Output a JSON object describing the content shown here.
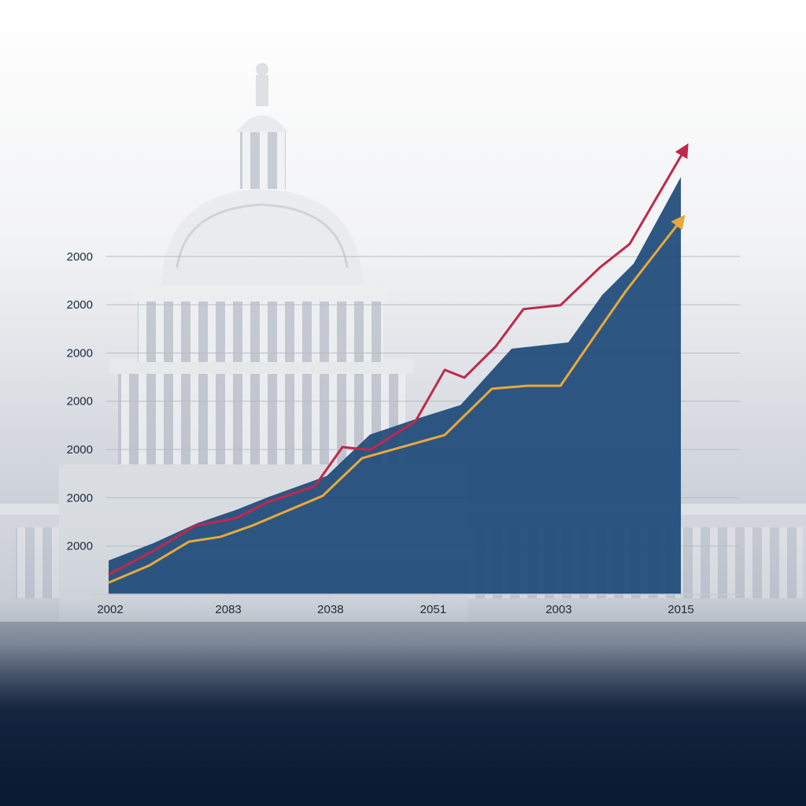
{
  "chart_data": {
    "type": "line",
    "xlim": [
      -2.76,
      110.34
    ],
    "xticks": [
      {
        "value": 0,
        "label": "2002"
      },
      {
        "value": 20.7,
        "label": "2083"
      },
      {
        "value": 38.6,
        "label": "2038"
      },
      {
        "value": 56.6,
        "label": "2051"
      },
      {
        "value": 78.6,
        "label": "2003"
      },
      {
        "value": 100,
        "label": "2015"
      }
    ],
    "ylim": [
      0,
      9.5
    ],
    "yticks": [
      {
        "value": 1,
        "label": "2000"
      },
      {
        "value": 2,
        "label": "2000"
      },
      {
        "value": 3,
        "label": "2000"
      },
      {
        "value": 4,
        "label": "2000"
      },
      {
        "value": 5,
        "label": "2000"
      },
      {
        "value": 6,
        "label": "2000"
      },
      {
        "value": 7,
        "label": "2000"
      }
    ],
    "grid": true,
    "series": [
      {
        "kind": "area",
        "color": "#1f4a7a",
        "x": [
          -0.28,
          7.59,
          15.17,
          22.07,
          27.59,
          37.93,
          45.52,
          53.79,
          61.38,
          70.34,
          80.28,
          86.21,
          91.72,
          100
        ],
        "values": [
          0.7,
          1.06,
          1.47,
          1.75,
          2.01,
          2.45,
          3.31,
          3.64,
          3.92,
          5.09,
          5.22,
          6.2,
          6.85,
          8.65
        ]
      },
      {
        "kind": "line",
        "color": "#c0284a",
        "x": [
          -0.28,
          7.59,
          14.9,
          22.07,
          27.59,
          35.86,
          40.69,
          45.52,
          53.52,
          58.62,
          62.07,
          67.59,
          72.41,
          78.9,
          85.79,
          91.03,
          100.69
        ],
        "values": [
          0.41,
          0.9,
          1.42,
          1.58,
          1.91,
          2.24,
          3.05,
          2.99,
          3.59,
          4.65,
          4.49,
          5.14,
          5.91,
          5.99,
          6.77,
          7.26,
          9.22
        ]
      },
      {
        "kind": "line",
        "color": "#e8a93a",
        "x": [
          -0.28,
          6.9,
          13.79,
          19.31,
          24.83,
          37.24,
          44.14,
          58.62,
          66.9,
          73.1,
          78.9,
          85.52,
          90.34,
          100
        ],
        "values": [
          0.24,
          0.6,
          1.09,
          1.19,
          1.42,
          2.04,
          2.82,
          3.3,
          4.26,
          4.32,
          4.32,
          5.46,
          6.28,
          7.75
        ]
      }
    ]
  }
}
